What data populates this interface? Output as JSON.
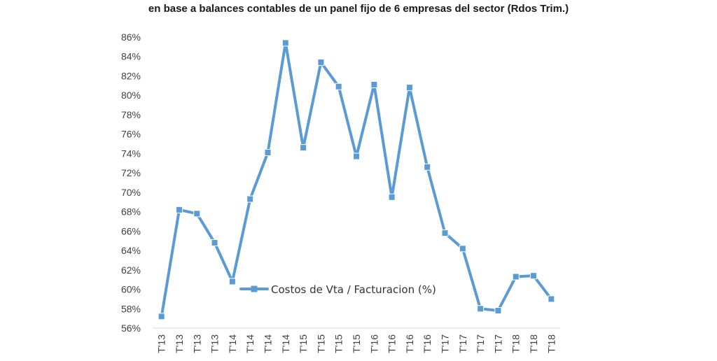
{
  "chart_data": {
    "type": "line",
    "title": "en base a balances contables de un panel fijo de 6 empresas del sector (Rdos Trim.)",
    "categories": [
      "T'13",
      "T'13",
      "T'13",
      "T'13",
      "T'14",
      "T'14",
      "T'14",
      "T'14",
      "T'15",
      "T'15",
      "T'15",
      "T'15",
      "T'16",
      "T'16",
      "T'16",
      "T'16",
      "T'17",
      "T'17",
      "T'17",
      "T'17",
      "T'18",
      "T'18",
      "T'18"
    ],
    "series": [
      {
        "name": "Costos de Vta / Facturacion (%)",
        "color": "#5b9bd5",
        "values": [
          57.2,
          68.2,
          67.8,
          64.8,
          60.8,
          69.3,
          74.1,
          85.4,
          74.6,
          83.4,
          80.9,
          73.7,
          81.1,
          69.5,
          80.8,
          72.6,
          65.8,
          64.2,
          58.0,
          57.8,
          61.3,
          61.4,
          59.0
        ]
      }
    ],
    "yticks": [
      "56%",
      "58%",
      "60%",
      "62%",
      "64%",
      "66%",
      "68%",
      "70%",
      "72%",
      "74%",
      "76%",
      "78%",
      "80%",
      "82%",
      "84%",
      "86%"
    ],
    "ylim": [
      56,
      86
    ],
    "grid": false,
    "legend": "inside, lower-left"
  }
}
